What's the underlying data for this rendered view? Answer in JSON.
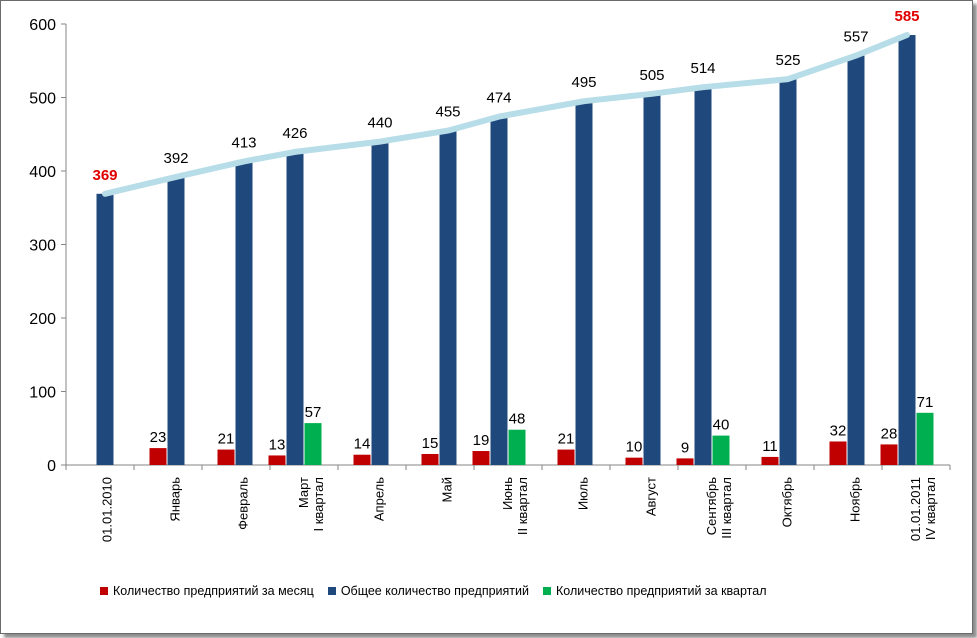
{
  "chart_data": {
    "type": "bar",
    "categories": [
      [
        "01.01.2010"
      ],
      [
        "Январь"
      ],
      [
        "Февраль"
      ],
      [
        "Март",
        "I квартал"
      ],
      [
        "Апрель"
      ],
      [
        "Май"
      ],
      [
        "Июнь",
        "II квартал"
      ],
      [
        "Июль"
      ],
      [
        "Август"
      ],
      [
        "Сентябрь",
        "III квартал"
      ],
      [
        "Октябрь"
      ],
      [
        "Ноябрь"
      ],
      [
        "01.01.2011",
        "IV квартал"
      ]
    ],
    "series": [
      {
        "name": "Количество предприятий за месяц",
        "color": "#c00000",
        "values": [
          null,
          23,
          21,
          13,
          14,
          15,
          19,
          21,
          10,
          9,
          11,
          32,
          28
        ]
      },
      {
        "name": "Общее количество предприятий",
        "color": "#1f497d",
        "values": [
          369,
          392,
          413,
          426,
          440,
          455,
          474,
          495,
          505,
          514,
          525,
          557,
          585
        ]
      },
      {
        "name": "Количество предприятий за квартал",
        "color": "#00b050",
        "values": [
          null,
          null,
          null,
          57,
          null,
          null,
          48,
          null,
          null,
          40,
          null,
          null,
          71
        ]
      }
    ],
    "trend_line": {
      "color": "#b7dde8",
      "follows": "Общее количество предприятий"
    },
    "highlight_labels": {
      "color": "#e00000",
      "values": [
        369,
        585
      ]
    },
    "ylim": [
      0,
      600
    ],
    "yticks": [
      0,
      100,
      200,
      300,
      400,
      500,
      600
    ],
    "grid": false,
    "legend_position": "bottom"
  }
}
